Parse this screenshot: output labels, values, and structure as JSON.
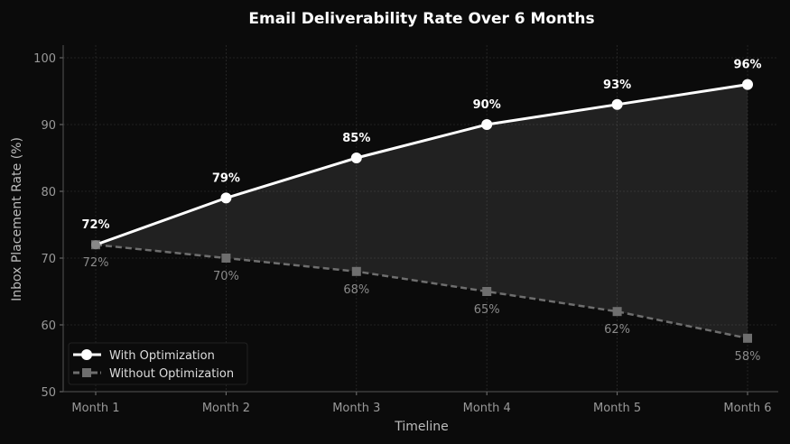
{
  "chart_data": {
    "type": "line",
    "title": "Email Deliverability Rate Over 6 Months",
    "xlabel": "Timeline",
    "ylabel": "Inbox Placement Rate (%)",
    "categories": [
      "Month 1",
      "Month 2",
      "Month 3",
      "Month 4",
      "Month 5",
      "Month 6"
    ],
    "ylim": [
      50,
      100
    ],
    "yticks": [
      50,
      60,
      70,
      80,
      90,
      100
    ],
    "grid": true,
    "legend": "bottom-left",
    "fill_between": true,
    "series": [
      {
        "name": "With Optimization",
        "values": [
          72,
          79,
          85,
          90,
          93,
          96
        ],
        "labels": [
          "72%",
          "79%",
          "85%",
          "90%",
          "93%",
          "96%"
        ],
        "color": "#ffffff",
        "marker": "circle",
        "linestyle": "solid"
      },
      {
        "name": "Without Optimization",
        "values": [
          72,
          70,
          68,
          65,
          62,
          58
        ],
        "labels": [
          "72%",
          "70%",
          "68%",
          "65%",
          "62%",
          "58%"
        ],
        "color": "#6e6e6e",
        "marker": "square",
        "linestyle": "dashed"
      }
    ]
  }
}
